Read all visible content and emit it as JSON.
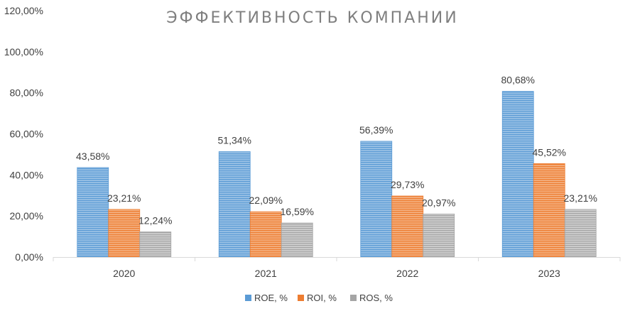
{
  "chart_data": {
    "type": "bar",
    "title": "ЭФФЕКТИВНОСТЬ КОМПАНИИ",
    "categories": [
      "2020",
      "2021",
      "2022",
      "2023"
    ],
    "series": [
      {
        "name": "ROE, %",
        "values": [
          43.58,
          51.34,
          56.39,
          80.68
        ],
        "labels": [
          "43,58%",
          "51,34%",
          "56,39%",
          "80,68%"
        ],
        "color": "#5b9bd5"
      },
      {
        "name": "ROI, %",
        "values": [
          23.21,
          22.09,
          29.73,
          45.52
        ],
        "labels": [
          "23,21%",
          "22,09%",
          "29,73%",
          "45,52%"
        ],
        "color": "#ed7d31"
      },
      {
        "name": "ROS, %",
        "values": [
          12.24,
          16.59,
          20.97,
          23.21
        ],
        "labels": [
          "12,24%",
          "16,59%",
          "20,97%",
          "23,21%"
        ],
        "color": "#a5a5a5"
      }
    ],
    "ylim": [
      0,
      120
    ],
    "yticks": [
      0,
      20,
      40,
      60,
      80,
      100,
      120
    ],
    "ytick_labels": [
      "0,00%",
      "20,00%",
      "40,00%",
      "60,00%",
      "80,00%",
      "100,00%",
      "120,00%"
    ],
    "grid": false,
    "legend_position": "bottom",
    "xlabel": "",
    "ylabel": ""
  }
}
